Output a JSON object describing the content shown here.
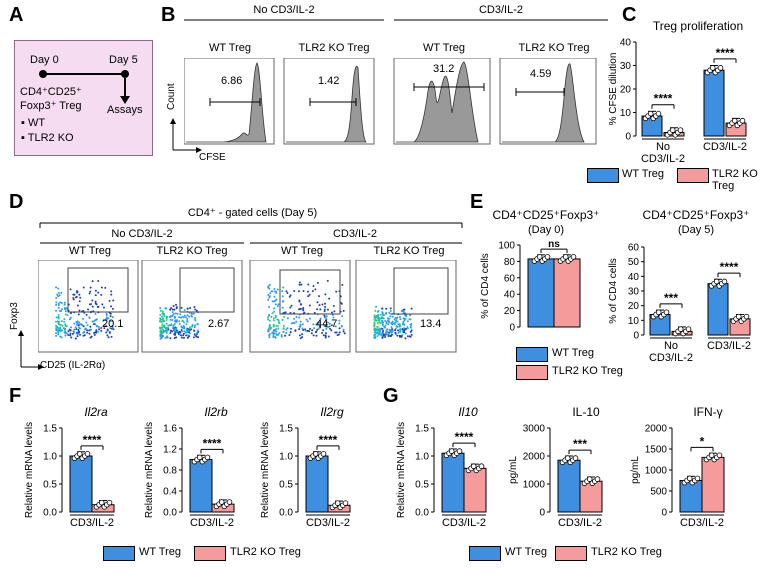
{
  "colors": {
    "wt": "#3f8fe0",
    "ko": "#f59b9b",
    "box": "#f6dcf1"
  },
  "panelA": {
    "letter": "A",
    "day0": "Day 0",
    "day5": "Day 5",
    "cells": "CD4⁺CD25⁺",
    "cells2": "Foxp3⁺ Treg",
    "assays": "Assays",
    "items": [
      "WT",
      "TLR2 KO"
    ]
  },
  "panelB": {
    "letter": "B",
    "cond1": "No CD3/IL-2",
    "cond2": "CD3/IL-2",
    "g1": "WT Treg",
    "g2": "TLR2 KO Treg",
    "g3": "WT Treg",
    "g4": "TLR2 KO Treg",
    "ylabel": "Count",
    "xlabel": "CFSE",
    "values": [
      "6.86",
      "1.42",
      "31.2",
      "4.59"
    ]
  },
  "panelD": {
    "letter": "D",
    "title": "CD4⁺ - gated cells (Day 5)",
    "cond1": "No CD3/IL-2",
    "cond2": "CD3/IL-2",
    "g1": "WT Treg",
    "g2": "TLR2 KO Treg",
    "g3": "WT Treg",
    "g4": "TLR2 KO Treg",
    "ylabel": "Foxp3",
    "xlabel": "CD25 (IL-2Rα)",
    "values": [
      "20.1",
      "2.67",
      "44.7",
      "13.4"
    ]
  },
  "legend": {
    "wt": "WT Treg",
    "ko": "TLR2 KO Treg"
  },
  "letters": {
    "C": "C",
    "E": "E",
    "F": "F",
    "G": "G"
  },
  "chart_data": [
    {
      "id": "C",
      "type": "bar",
      "title": "Treg proliferation",
      "ylabel": "% CFSE dilution",
      "ylim": [
        0,
        40
      ],
      "yticks": [
        "0",
        "10",
        "20",
        "30",
        "40"
      ],
      "categories": [
        "No\nCD3/IL-2",
        "CD3/IL-2"
      ],
      "series": [
        {
          "name": "WT Treg",
          "values": [
            8.5,
            28
          ]
        },
        {
          "name": "TLR2 KO Treg",
          "values": [
            1.5,
            5.5
          ]
        }
      ],
      "sig": [
        "****",
        "****"
      ]
    },
    {
      "id": "E1",
      "type": "bar",
      "title": "CD4⁺CD25⁺Foxp3⁺",
      "subtitle": "(Day 0)",
      "ylabel": "% of CD4 cells",
      "ylim": [
        0,
        100
      ],
      "yticks": [
        "0",
        "20",
        "40",
        "60",
        "80",
        "100"
      ],
      "categories": [
        ""
      ],
      "series": [
        {
          "name": "WT Treg",
          "values": [
            83
          ]
        },
        {
          "name": "TLR2 KO Treg",
          "values": [
            83
          ]
        }
      ],
      "sig": [
        "ns"
      ]
    },
    {
      "id": "E2",
      "type": "bar",
      "title": "CD4⁺CD25⁺Foxp3⁺",
      "subtitle": "(Day 5)",
      "ylabel": "% of CD4 cells",
      "ylim": [
        0,
        60
      ],
      "yticks": [
        "0",
        "10",
        "20",
        "30",
        "40",
        "50",
        "60"
      ],
      "categories": [
        "No\nCD3/IL-2",
        "CD3/IL-2"
      ],
      "series": [
        {
          "name": "WT Treg",
          "values": [
            14,
            35
          ]
        },
        {
          "name": "TLR2 KO Treg",
          "values": [
            2.5,
            11
          ]
        }
      ],
      "sig": [
        "***",
        "****"
      ]
    },
    {
      "id": "F1",
      "type": "bar",
      "title": "Il2ra",
      "ylabel": "Relative mRNA levels",
      "ylim": [
        0,
        1.5
      ],
      "yticks": [
        "0.0",
        "0.5",
        "1.0",
        "1.5"
      ],
      "categories": [
        "CD3/IL-2"
      ],
      "series": [
        {
          "name": "WT Treg",
          "values": [
            1.0
          ]
        },
        {
          "name": "TLR2 KO Treg",
          "values": [
            0.13
          ]
        }
      ],
      "sig": [
        "****"
      ]
    },
    {
      "id": "F2",
      "type": "bar",
      "title": "Il2rb",
      "ylabel": "Relative mRNA levels",
      "ylim": [
        0,
        1.6
      ],
      "yticks": [
        "0.0",
        "0.4",
        "0.8",
        "1.2",
        "1.6"
      ],
      "categories": [
        "CD3/IL-2"
      ],
      "series": [
        {
          "name": "WT Treg",
          "values": [
            1.0
          ]
        },
        {
          "name": "TLR2 KO Treg",
          "values": [
            0.15
          ]
        }
      ],
      "sig": [
        "****"
      ]
    },
    {
      "id": "F3",
      "type": "bar",
      "title": "Il2rg",
      "ylabel": "Relative mRNA levels",
      "ylim": [
        0,
        1.5
      ],
      "yticks": [
        "0.0",
        "0.5",
        "1.0",
        "1.5"
      ],
      "categories": [
        "CD3/IL-2"
      ],
      "series": [
        {
          "name": "WT Treg",
          "values": [
            1.0
          ]
        },
        {
          "name": "TLR2 KO Treg",
          "values": [
            0.12
          ]
        }
      ],
      "sig": [
        "****"
      ]
    },
    {
      "id": "G1",
      "type": "bar",
      "title": "Il10",
      "ylabel": "Relative mRNA levels",
      "ylim": [
        0,
        1.5
      ],
      "yticks": [
        "0.0",
        "0.5",
        "1.0",
        "1.5"
      ],
      "categories": [
        "CD3/IL-2"
      ],
      "series": [
        {
          "name": "WT Treg",
          "values": [
            1.05
          ]
        },
        {
          "name": "TLR2 KO Treg",
          "values": [
            0.78
          ]
        }
      ],
      "sig": [
        "****"
      ]
    },
    {
      "id": "G2",
      "type": "bar",
      "title": "IL-10",
      "ylabel": "pg/mL",
      "ylim": [
        0,
        3000
      ],
      "yticks": [
        "0",
        "1000",
        "2000",
        "3000"
      ],
      "categories": [
        "CD3/IL-2"
      ],
      "series": [
        {
          "name": "WT Treg",
          "values": [
            1850
          ]
        },
        {
          "name": "TLR2 KO Treg",
          "values": [
            1100
          ]
        }
      ],
      "sig": [
        "***"
      ]
    },
    {
      "id": "G3",
      "type": "bar",
      "title": "IFN-γ",
      "ylabel": "pg/mL",
      "ylim": [
        0,
        2000
      ],
      "yticks": [
        "0",
        "500",
        "1000",
        "1500",
        "2000"
      ],
      "categories": [
        "CD3/IL-2"
      ],
      "series": [
        {
          "name": "WT Treg",
          "values": [
            750
          ]
        },
        {
          "name": "TLR2 KO Treg",
          "values": [
            1300
          ]
        }
      ],
      "sig": [
        "*"
      ]
    }
  ]
}
